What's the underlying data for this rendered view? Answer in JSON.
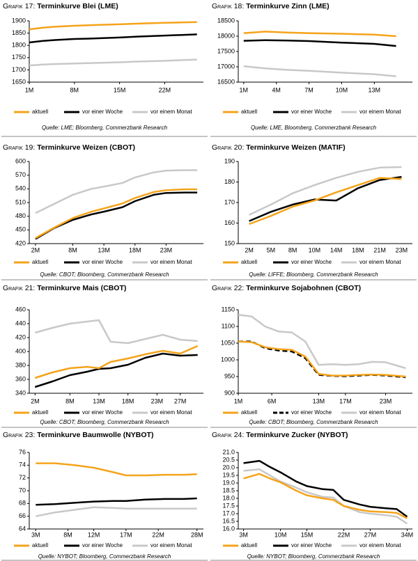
{
  "chart_data": [
    {
      "type": "line",
      "label": "Grafik 17:",
      "title": "Terminkurve Blei (LME)",
      "source": "Quelle: LME; Bloomberg, Commerzbank Research",
      "x": [
        1,
        3,
        5,
        8,
        11,
        15,
        18,
        22,
        25,
        27
      ],
      "xlim": [
        1,
        28
      ],
      "xticks": [
        {
          "value": 1,
          "label": "1M"
        },
        {
          "value": 8,
          "label": "8M"
        },
        {
          "value": 15,
          "label": "15M"
        },
        {
          "value": 22,
          "label": "22M"
        }
      ],
      "ylim": [
        1650,
        1900
      ],
      "yticks": [
        1650,
        1700,
        1750,
        1800,
        1850,
        1900
      ],
      "series": [
        {
          "name": "aktuell",
          "color": "#f5a31a",
          "values": [
            1865,
            1872,
            1876,
            1880,
            1883,
            1886,
            1889,
            1892,
            1894,
            1895
          ]
        },
        {
          "name": "vor einer Woche",
          "color": "#000000",
          "values": [
            1812,
            1818,
            1822,
            1826,
            1828,
            1832,
            1836,
            1840,
            1843,
            1845
          ]
        },
        {
          "name": "vor einem Monat",
          "color": "#c8c8c8",
          "values": [
            1718,
            1722,
            1724,
            1726,
            1728,
            1731,
            1734,
            1737,
            1740,
            1742
          ]
        }
      ]
    },
    {
      "type": "line",
      "label": "Grafik 18:",
      "title": "Terminkurve Zinn (LME)",
      "source": "Quelle: LME, Bloomberg, Commerzbank Research",
      "x": [
        1,
        3,
        5,
        7,
        10,
        13,
        15
      ],
      "xlim": [
        0.5,
        16.5
      ],
      "xticks": [
        {
          "value": 1,
          "label": "1M"
        },
        {
          "value": 4,
          "label": "4M"
        },
        {
          "value": 7,
          "label": "7M"
        },
        {
          "value": 10,
          "label": "10M"
        },
        {
          "value": 13,
          "label": "13M"
        }
      ],
      "ylim": [
        16500,
        18500
      ],
      "yticks": [
        16500,
        17000,
        17500,
        18000,
        18500
      ],
      "series": [
        {
          "name": "aktuell",
          "color": "#f5a31a",
          "values": [
            18100,
            18150,
            18120,
            18100,
            18080,
            18050,
            18000
          ]
        },
        {
          "name": "vor einer Woche",
          "color": "#000000",
          "values": [
            17850,
            17870,
            17860,
            17840,
            17790,
            17750,
            17680
          ]
        },
        {
          "name": "vor einem Monat",
          "color": "#c8c8c8",
          "values": [
            17020,
            16950,
            16900,
            16870,
            16810,
            16760,
            16690
          ]
        }
      ]
    },
    {
      "type": "line",
      "label": "Grafik 19:",
      "title": "Terminkurve Weizen (CBOT)",
      "source": "Quelle: CBOT; Bloomberg, Commerzbank Research",
      "x": [
        2,
        5,
        8,
        11,
        13,
        16,
        18,
        21,
        23,
        26,
        28
      ],
      "xlim": [
        1,
        29
      ],
      "xticks": [
        {
          "value": 2,
          "label": "2M"
        },
        {
          "value": 8,
          "label": "8M"
        },
        {
          "value": 13,
          "label": "13M"
        },
        {
          "value": 18,
          "label": "18M"
        },
        {
          "value": 23,
          "label": "23M"
        }
      ],
      "ylim": [
        420,
        600
      ],
      "yticks": [
        420,
        450,
        480,
        510,
        540,
        570,
        600
      ],
      "series": [
        {
          "name": "aktuell",
          "color": "#f5a31a",
          "values": [
            432,
            455,
            476,
            490,
            497,
            508,
            520,
            533,
            537,
            539,
            539
          ]
        },
        {
          "name": "vor einer Woche",
          "color": "#000000",
          "values": [
            430,
            454,
            472,
            484,
            490,
            500,
            513,
            527,
            531,
            532,
            532
          ]
        },
        {
          "name": "vor einem Monat",
          "color": "#c8c8c8",
          "values": [
            487,
            507,
            527,
            540,
            545,
            553,
            565,
            576,
            580,
            581,
            581
          ]
        }
      ]
    },
    {
      "type": "line",
      "label": "Grafik 20:",
      "title": "Terminkurve Weizen (MATIF)",
      "source": "Quelle: LIFFE; Bloomberg, Commerzbank Research",
      "categories": [
        "2M",
        "5M",
        "8M",
        "10M",
        "14M",
        "18M",
        "21M",
        "23M"
      ],
      "ylim": [
        150,
        190
      ],
      "yticks": [
        150,
        160,
        170,
        180,
        190
      ],
      "series": [
        {
          "name": "aktuell",
          "color": "#f5a31a",
          "values": [
            159.5,
            163.5,
            168,
            171,
            175,
            178.5,
            182,
            181.5
          ]
        },
        {
          "name": "vor einer Woche",
          "color": "#000000",
          "values": [
            161,
            165.5,
            169,
            171.5,
            171,
            177,
            181,
            182.5
          ]
        },
        {
          "name": "vor einem Monat",
          "color": "#c8c8c8",
          "values": [
            164,
            169,
            174.5,
            178.5,
            182,
            185,
            187,
            187.3
          ]
        }
      ]
    },
    {
      "type": "line",
      "label": "Grafik 21:",
      "title": "Terminkurve Mais (CBOT)",
      "source": "Quelle: CBOT; Bloomberg, Commerzbank Research",
      "x": [
        2,
        5,
        8,
        11,
        13,
        15,
        18,
        21,
        24,
        27,
        30
      ],
      "xlim": [
        1,
        31
      ],
      "xticks": [
        {
          "value": 2,
          "label": "2M"
        },
        {
          "value": 8,
          "label": "8M"
        },
        {
          "value": 13,
          "label": "13M"
        },
        {
          "value": 18,
          "label": "18M"
        },
        {
          "value": 23,
          "label": "23M"
        },
        {
          "value": 27,
          "label": "27M"
        }
      ],
      "ylim": [
        340,
        460
      ],
      "yticks": [
        340,
        360,
        380,
        400,
        420,
        440,
        460
      ],
      "series": [
        {
          "name": "aktuell",
          "color": "#f5a31a",
          "values": [
            362,
            370,
            376,
            378,
            376,
            385,
            390,
            396,
            401,
            397,
            408
          ]
        },
        {
          "name": "vor einer Woche",
          "color": "#000000",
          "values": [
            349,
            357,
            366,
            371,
            375,
            376,
            381,
            391,
            397,
            394,
            395
          ]
        },
        {
          "name": "vor einem Monat",
          "color": "#c8c8c8",
          "values": [
            427,
            434,
            440,
            443,
            445,
            414,
            412,
            418,
            424,
            417,
            415
          ]
        }
      ]
    },
    {
      "type": "line",
      "label": "Grafik 22:",
      "title": "Terminkurve Sojabohnen (CBOT)",
      "source": "Quelle: CBOT; Bloomberg, Commerzbank Research",
      "x": [
        1,
        3,
        5,
        7,
        9,
        11,
        13,
        15,
        17,
        19,
        21,
        23,
        26
      ],
      "xlim": [
        1,
        27
      ],
      "xticks": [
        {
          "value": 1,
          "label": "1M"
        },
        {
          "value": 6,
          "label": "6M"
        },
        {
          "value": 13,
          "label": "13M"
        },
        {
          "value": 17,
          "label": "17M"
        },
        {
          "value": 23,
          "label": "23M"
        }
      ],
      "ylim": [
        900,
        1150
      ],
      "yticks": [
        900,
        950,
        1000,
        1050,
        1100,
        1150
      ],
      "series": [
        {
          "name": "aktuell",
          "color": "#f5a31a",
          "values": [
            1055,
            1053,
            1038,
            1032,
            1030,
            1010,
            958,
            953,
            953,
            955,
            956,
            955,
            950
          ]
        },
        {
          "name": "vor einer Woche",
          "color": "#000000",
          "dash": true,
          "values": [
            1055,
            1055,
            1035,
            1028,
            1025,
            1005,
            955,
            952,
            951,
            953,
            955,
            953,
            948
          ]
        },
        {
          "name": "vor einem Monat",
          "color": "#c8c8c8",
          "values": [
            1135,
            1130,
            1100,
            1085,
            1082,
            1055,
            985,
            987,
            985,
            987,
            994,
            993,
            975
          ]
        }
      ]
    },
    {
      "type": "line",
      "label": "Grafik 23:",
      "title": "Terminkurve Baumwolle (NYBOT)",
      "source": "Quelle: NYBOT; Bloomberg, Commerzbank Research",
      "x": [
        3,
        6,
        9,
        12,
        15,
        17,
        20,
        23,
        26,
        28
      ],
      "xlim": [
        2,
        29
      ],
      "xticks": [
        {
          "value": 3,
          "label": "3M"
        },
        {
          "value": 8,
          "label": "8M"
        },
        {
          "value": 12,
          "label": "12M"
        },
        {
          "value": 17,
          "label": "17M"
        },
        {
          "value": 22,
          "label": "22M"
        },
        {
          "value": 28,
          "label": "28M"
        }
      ],
      "ylim": [
        64,
        76
      ],
      "yticks": [
        64,
        66,
        68,
        70,
        72,
        74,
        76
      ],
      "series": [
        {
          "name": "aktuell",
          "color": "#f5a31a",
          "values": [
            74.3,
            74.3,
            74.0,
            73.6,
            72.9,
            72.4,
            72.4,
            72.5,
            72.5,
            72.6
          ]
        },
        {
          "name": "vor einer Woche",
          "color": "#000000",
          "values": [
            67.8,
            67.9,
            68.1,
            68.3,
            68.4,
            68.4,
            68.6,
            68.7,
            68.7,
            68.8
          ]
        },
        {
          "name": "vor einem Monat",
          "color": "#c8c8c8",
          "values": [
            66.0,
            66.6,
            67.0,
            67.4,
            67.3,
            67.2,
            67.2,
            67.2,
            67.2,
            67.2
          ]
        }
      ]
    },
    {
      "type": "line",
      "label": "Grafik 24:",
      "title": "Terminkurve Zucker (NYBOT)",
      "source": "Quelle: NYBOT; Bloomberg, Commerzbank Research",
      "x": [
        3,
        6,
        8,
        10,
        13,
        15,
        18,
        20,
        22,
        25,
        27,
        30,
        32,
        34
      ],
      "xlim": [
        2,
        35
      ],
      "xticks": [
        {
          "value": 3,
          "label": "3M"
        },
        {
          "value": 10,
          "label": "10M"
        },
        {
          "value": 15,
          "label": "15M"
        },
        {
          "value": 22,
          "label": "22M"
        },
        {
          "value": 27,
          "label": "27M"
        },
        {
          "value": 34,
          "label": "34M"
        }
      ],
      "ylim": [
        16,
        21
      ],
      "yticks": [
        {
          "value": 16,
          "label": "16.0"
        },
        16.5,
        {
          "value": 17,
          "label": "17.0"
        },
        17.5,
        {
          "value": 18,
          "label": "18.0"
        },
        18.5,
        {
          "value": 19,
          "label": "19.0"
        },
        19.5,
        {
          "value": 20,
          "label": "20.0"
        },
        20.5,
        {
          "value": 21,
          "label": "21.0"
        }
      ],
      "series": [
        {
          "name": "aktuell",
          "color": "#f5a31a",
          "values": [
            19.3,
            19.6,
            19.3,
            19.05,
            18.5,
            18.2,
            18.0,
            17.9,
            17.5,
            17.25,
            17.15,
            17.1,
            17.05,
            16.7
          ]
        },
        {
          "name": "vor einer Woche",
          "color": "#000000",
          "values": [
            20.3,
            20.45,
            20.05,
            19.7,
            19.1,
            18.8,
            18.6,
            18.55,
            17.9,
            17.6,
            17.45,
            17.35,
            17.3,
            16.8
          ]
        },
        {
          "name": "vor einem Monat",
          "color": "#c8c8c8",
          "values": [
            19.8,
            19.9,
            19.5,
            19.1,
            18.7,
            18.4,
            18.1,
            18.05,
            17.5,
            17.1,
            17.0,
            16.9,
            16.8,
            16.35
          ]
        }
      ]
    }
  ]
}
